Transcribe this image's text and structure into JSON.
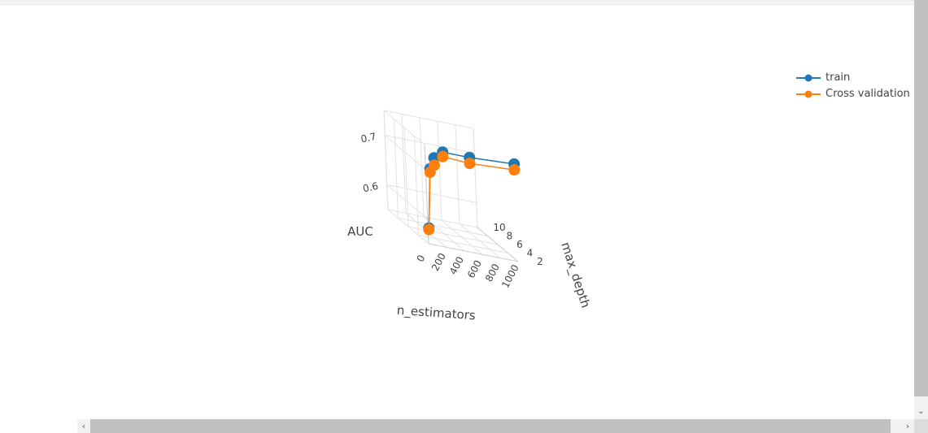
{
  "chart_data": {
    "type": "scatter",
    "projection": "3d",
    "axes": {
      "x": {
        "label": "n_estimators",
        "ticks": [
          0,
          200,
          400,
          600,
          800,
          1000
        ],
        "range": [
          0,
          1000
        ]
      },
      "y": {
        "label": "max_depth",
        "ticks": [
          2,
          4,
          6,
          8,
          10
        ],
        "range": [
          2,
          10
        ]
      },
      "z": {
        "label": "AUC",
        "ticks": [
          0.6,
          0.7
        ],
        "range": [
          0.55,
          0.75
        ]
      }
    },
    "grid": true,
    "legend": {
      "placement": "top-right"
    },
    "series": [
      {
        "name": "train",
        "color": "#1f77b4",
        "mode": "lines+markers",
        "points": [
          {
            "x": 1000,
            "y": 2,
            "z": 0.747
          },
          {
            "x": 500,
            "y": 2,
            "z": 0.742
          },
          {
            "x": 200,
            "y": 2,
            "z": 0.742
          },
          {
            "x": 100,
            "y": 2,
            "z": 0.727
          },
          {
            "x": 50,
            "y": 2,
            "z": 0.703
          },
          {
            "x": 10,
            "y": 2,
            "z": 0.582
          }
        ]
      },
      {
        "name": "Cross validation",
        "color": "#ff7f0e",
        "mode": "lines+markers",
        "points": [
          {
            "x": 1000,
            "y": 2,
            "z": 0.735
          },
          {
            "x": 500,
            "y": 2,
            "z": 0.73
          },
          {
            "x": 200,
            "y": 2,
            "z": 0.733
          },
          {
            "x": 100,
            "y": 2,
            "z": 0.712
          },
          {
            "x": 50,
            "y": 2,
            "z": 0.696
          },
          {
            "x": 10,
            "y": 2,
            "z": 0.579
          }
        ]
      }
    ]
  }
}
